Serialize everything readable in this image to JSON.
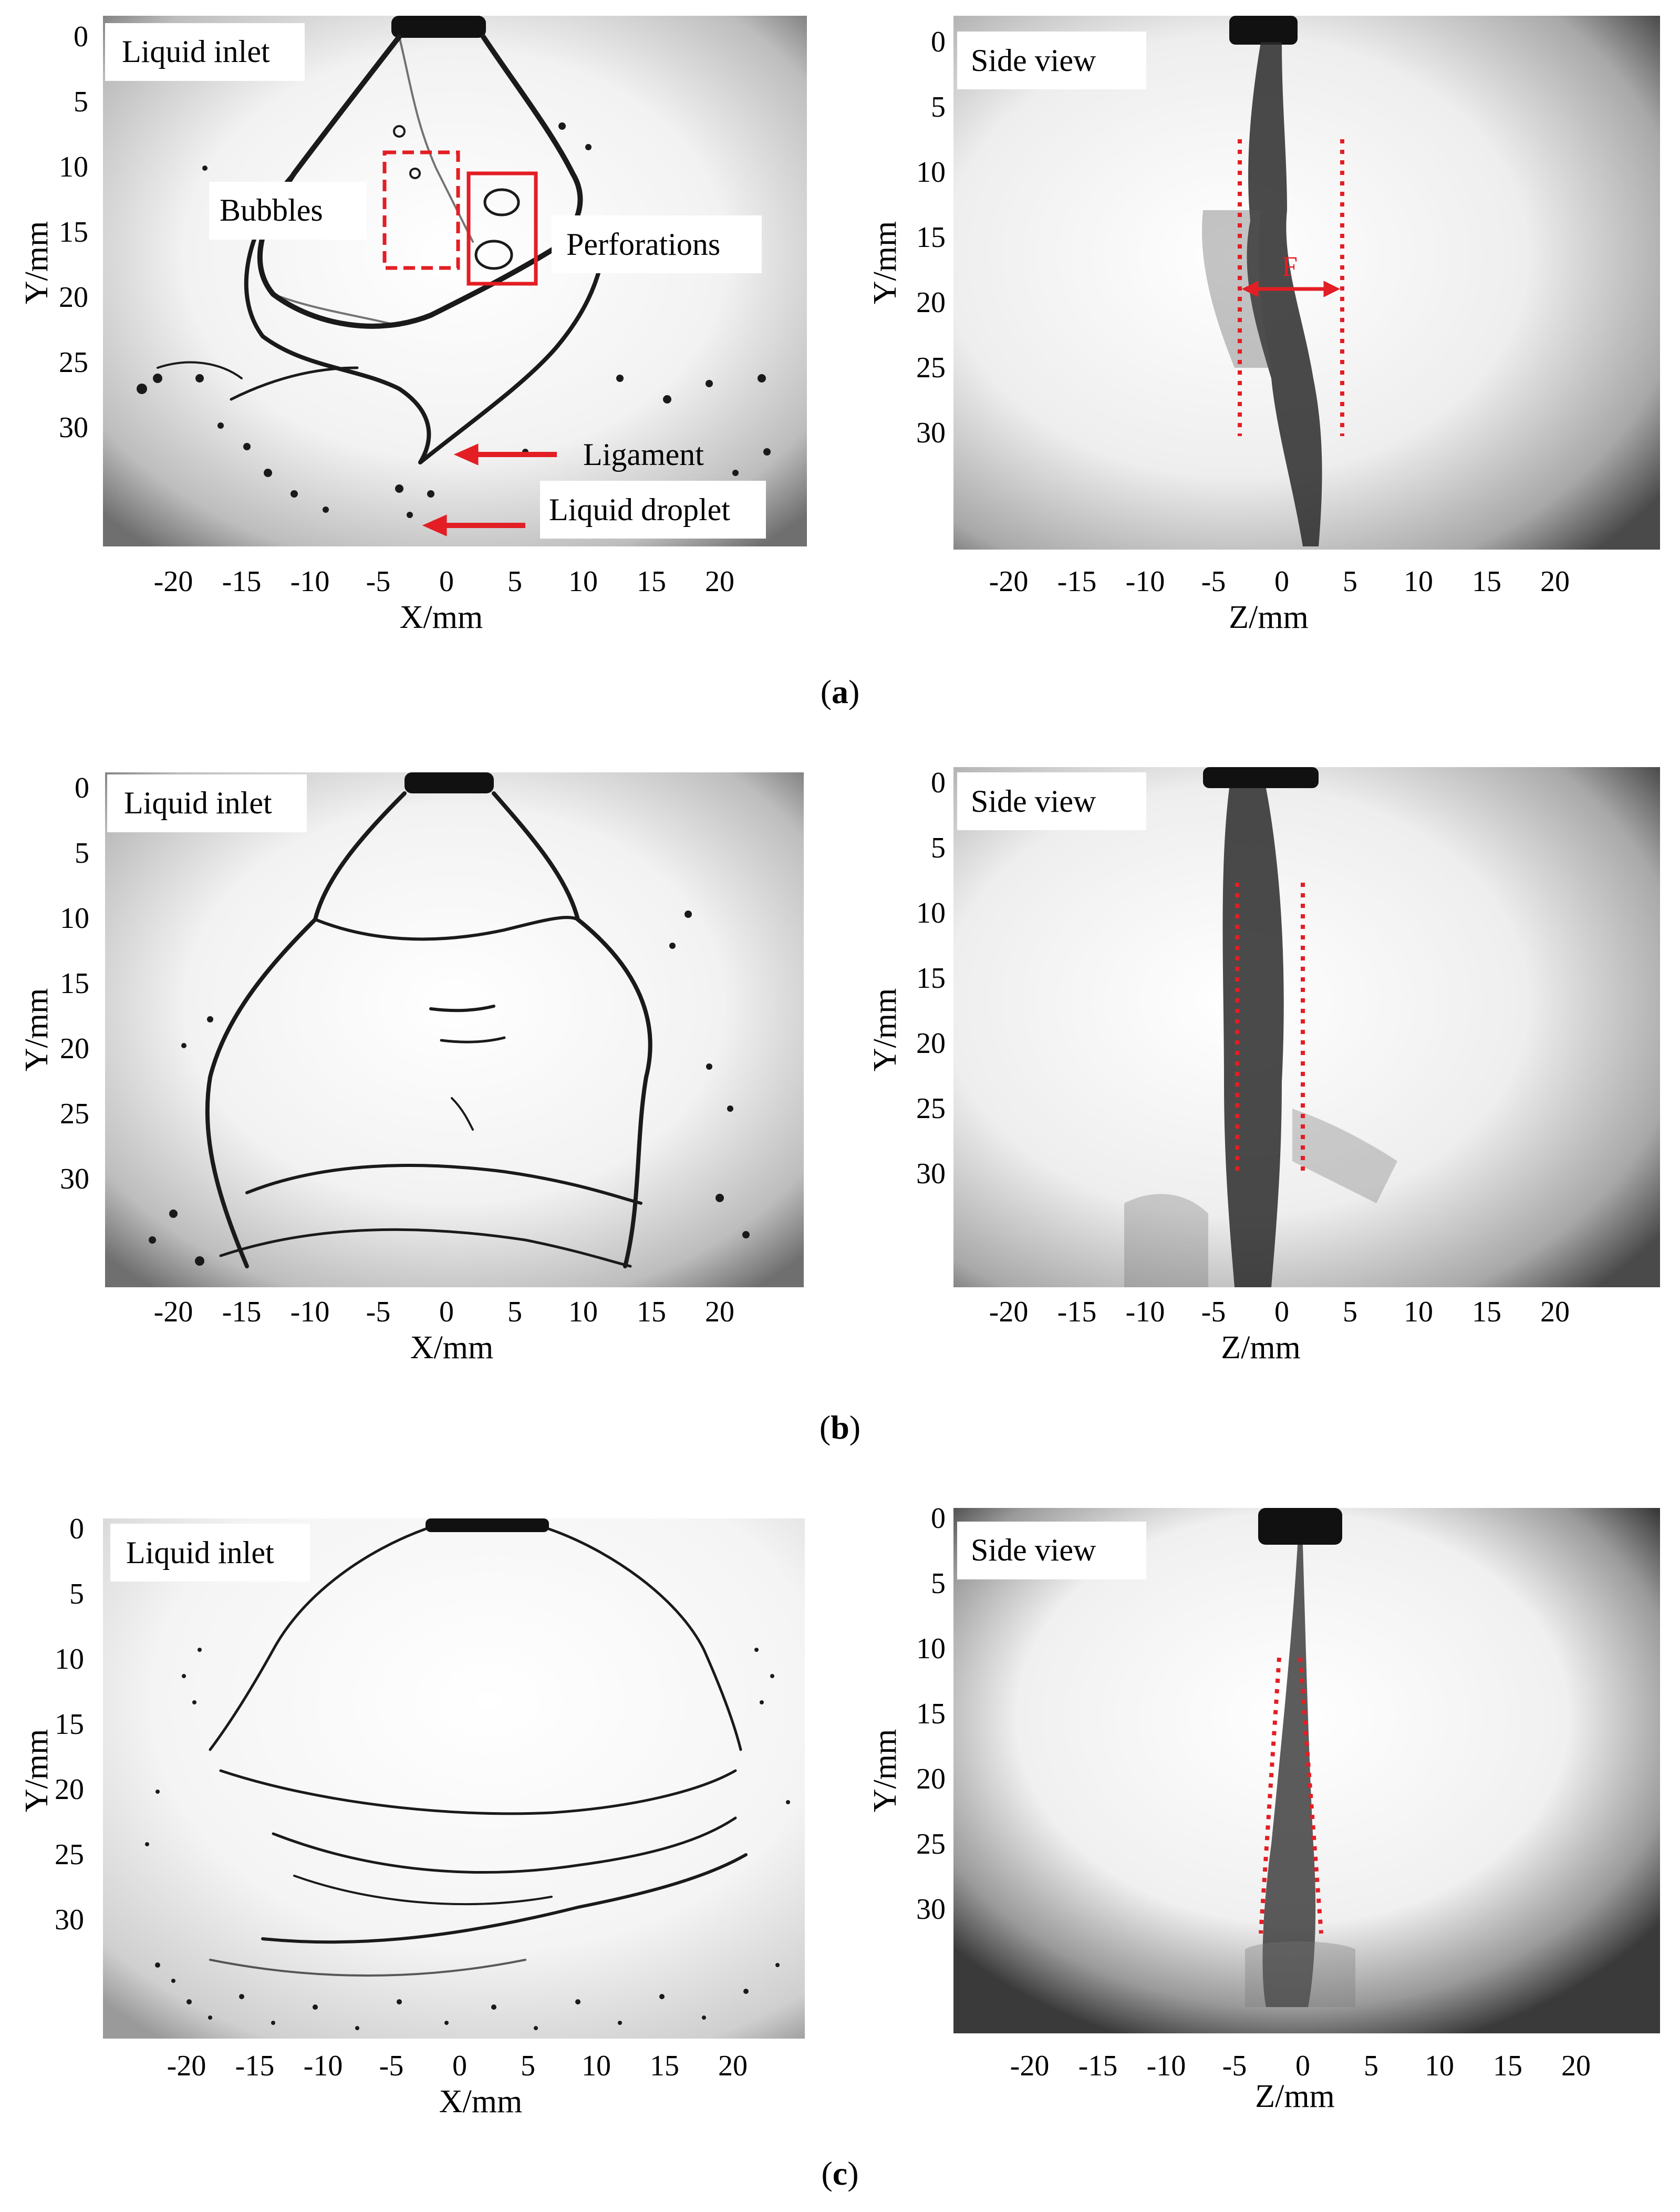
{
  "panels": [
    {
      "caption_letter": "a",
      "front": {
        "label": "Liquid inlet",
        "xlabel": "X/mm",
        "ylabel": "Y/mm",
        "annotations": [
          "Bubbles",
          "Perforations",
          "Ligament",
          "Liquid droplet"
        ]
      },
      "side": {
        "label": "Side view",
        "xlabel": "Z/mm",
        "ylabel": "Y/mm",
        "spread_symbol": "F"
      }
    },
    {
      "caption_letter": "b",
      "front": {
        "label": "Liquid inlet",
        "xlabel": "X/mm",
        "ylabel": "Y/mm",
        "annotations": []
      },
      "side": {
        "label": "Side view",
        "xlabel": "Z/mm",
        "ylabel": "Y/mm"
      }
    },
    {
      "caption_letter": "c",
      "front": {
        "label": "Liquid inlet",
        "xlabel": "X/mm",
        "ylabel": "Y/mm",
        "annotations": []
      },
      "side": {
        "label": "Side view",
        "xlabel": "Z/mm",
        "ylabel": "Y/mm"
      }
    }
  ],
  "axes": {
    "x_ticks": [
      "-20",
      "-15",
      "-10",
      "-5",
      "0",
      "5",
      "10",
      "15",
      "20"
    ],
    "y_ticks": [
      "0",
      "5",
      "10",
      "15",
      "20",
      "25",
      "30"
    ]
  },
  "colors": {
    "annotation_red": "#e31e24",
    "spray_dark": "#1a1a1a"
  }
}
